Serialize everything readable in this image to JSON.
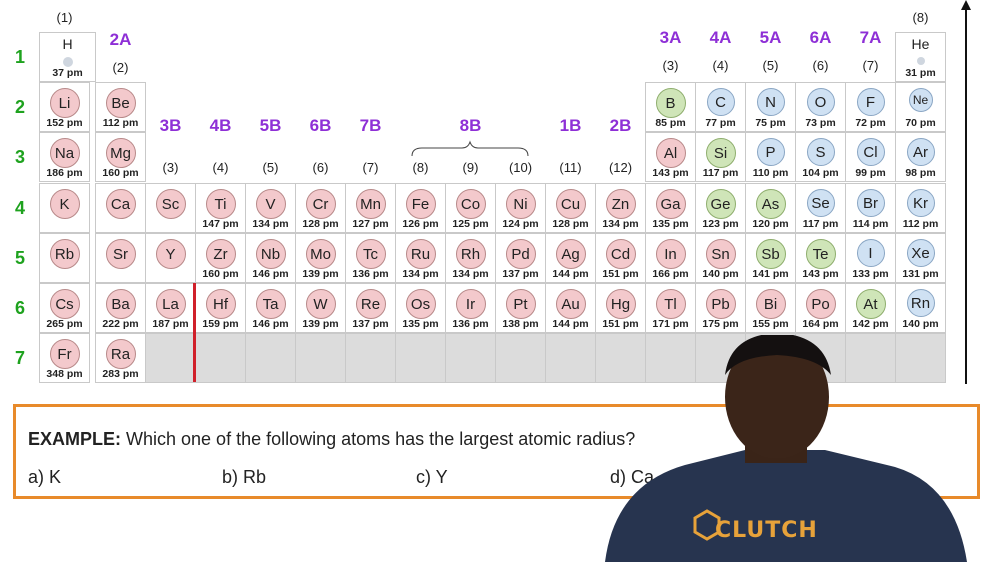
{
  "colors": {
    "metal": "#f3c9cc",
    "metalloid": "#cfe5b8",
    "nonmetal": "#cfe1f3",
    "accent_purple": "#8e2fd6",
    "accent_green": "#1ea21e",
    "box_border": "#e88a2a"
  },
  "rows": [
    "1",
    "2",
    "3",
    "4",
    "5",
    "6",
    "7"
  ],
  "groups_top": [
    {
      "label": "",
      "num": "(1)"
    },
    {
      "label": "2A",
      "num": "(2)"
    },
    {
      "label": "3B",
      "num": "(3)"
    },
    {
      "label": "4B",
      "num": "(4)"
    },
    {
      "label": "5B",
      "num": "(5)"
    },
    {
      "label": "6B",
      "num": "(6)"
    },
    {
      "label": "7B",
      "num": "(7)"
    },
    {
      "label": "",
      "num": "(8)"
    },
    {
      "label": "8B",
      "num": "(9)"
    },
    {
      "label": "",
      "num": "(10)"
    },
    {
      "label": "1B",
      "num": "(11)"
    },
    {
      "label": "2B",
      "num": "(12)"
    },
    {
      "label": "3A",
      "num": "(3)"
    },
    {
      "label": "4A",
      "num": "(4)"
    },
    {
      "label": "5A",
      "num": "(5)"
    },
    {
      "label": "6A",
      "num": "(6)"
    },
    {
      "label": "7A",
      "num": "(7)"
    },
    {
      "label": "",
      "num": "(8)"
    }
  ],
  "hydrogen": {
    "symbol": "H",
    "pm": "37 pm"
  },
  "helium": {
    "symbol": "He",
    "pm": "31 pm"
  },
  "elements": [
    {
      "sym": "Li",
      "pm": "152 pm",
      "row": 2,
      "col": 1,
      "type": "metal"
    },
    {
      "sym": "Be",
      "pm": "112 pm",
      "row": 2,
      "col": 2,
      "type": "metal"
    },
    {
      "sym": "B",
      "pm": "85 pm",
      "row": 2,
      "col": 13,
      "type": "metalloid"
    },
    {
      "sym": "C",
      "pm": "77 pm",
      "row": 2,
      "col": 14,
      "type": "nonmetal"
    },
    {
      "sym": "N",
      "pm": "75 pm",
      "row": 2,
      "col": 15,
      "type": "nonmetal"
    },
    {
      "sym": "O",
      "pm": "73 pm",
      "row": 2,
      "col": 16,
      "type": "nonmetal"
    },
    {
      "sym": "F",
      "pm": "72 pm",
      "row": 2,
      "col": 17,
      "type": "nonmetal"
    },
    {
      "sym": "Ne",
      "pm": "70 pm",
      "row": 2,
      "col": 18,
      "type": "nonmetal"
    },
    {
      "sym": "Na",
      "pm": "186 pm",
      "row": 3,
      "col": 1,
      "type": "metal"
    },
    {
      "sym": "Mg",
      "pm": "160 pm",
      "row": 3,
      "col": 2,
      "type": "metal"
    },
    {
      "sym": "Al",
      "pm": "143 pm",
      "row": 3,
      "col": 13,
      "type": "metal"
    },
    {
      "sym": "Si",
      "pm": "117 pm",
      "row": 3,
      "col": 14,
      "type": "metalloid"
    },
    {
      "sym": "P",
      "pm": "110 pm",
      "row": 3,
      "col": 15,
      "type": "nonmetal"
    },
    {
      "sym": "S",
      "pm": "104 pm",
      "row": 3,
      "col": 16,
      "type": "nonmetal"
    },
    {
      "sym": "Cl",
      "pm": "99 pm",
      "row": 3,
      "col": 17,
      "type": "nonmetal"
    },
    {
      "sym": "Ar",
      "pm": "98 pm",
      "row": 3,
      "col": 18,
      "type": "nonmetal"
    },
    {
      "sym": "K",
      "pm": "",
      "row": 4,
      "col": 1,
      "type": "metal"
    },
    {
      "sym": "Ca",
      "pm": "",
      "row": 4,
      "col": 2,
      "type": "metal"
    },
    {
      "sym": "Sc",
      "pm": "",
      "row": 4,
      "col": 3,
      "type": "metal"
    },
    {
      "sym": "Ti",
      "pm": "147 pm",
      "row": 4,
      "col": 4,
      "type": "metal"
    },
    {
      "sym": "V",
      "pm": "134 pm",
      "row": 4,
      "col": 5,
      "type": "metal"
    },
    {
      "sym": "Cr",
      "pm": "128 pm",
      "row": 4,
      "col": 6,
      "type": "metal"
    },
    {
      "sym": "Mn",
      "pm": "127 pm",
      "row": 4,
      "col": 7,
      "type": "metal"
    },
    {
      "sym": "Fe",
      "pm": "126 pm",
      "row": 4,
      "col": 8,
      "type": "metal"
    },
    {
      "sym": "Co",
      "pm": "125 pm",
      "row": 4,
      "col": 9,
      "type": "metal"
    },
    {
      "sym": "Ni",
      "pm": "124 pm",
      "row": 4,
      "col": 10,
      "type": "metal"
    },
    {
      "sym": "Cu",
      "pm": "128 pm",
      "row": 4,
      "col": 11,
      "type": "metal"
    },
    {
      "sym": "Zn",
      "pm": "134 pm",
      "row": 4,
      "col": 12,
      "type": "metal"
    },
    {
      "sym": "Ga",
      "pm": "135 pm",
      "row": 4,
      "col": 13,
      "type": "metal"
    },
    {
      "sym": "Ge",
      "pm": "123 pm",
      "row": 4,
      "col": 14,
      "type": "metalloid"
    },
    {
      "sym": "As",
      "pm": "120 pm",
      "row": 4,
      "col": 15,
      "type": "metalloid"
    },
    {
      "sym": "Se",
      "pm": "117 pm",
      "row": 4,
      "col": 16,
      "type": "nonmetal"
    },
    {
      "sym": "Br",
      "pm": "114 pm",
      "row": 4,
      "col": 17,
      "type": "nonmetal"
    },
    {
      "sym": "Kr",
      "pm": "112 pm",
      "row": 4,
      "col": 18,
      "type": "nonmetal"
    },
    {
      "sym": "Rb",
      "pm": "",
      "row": 5,
      "col": 1,
      "type": "metal"
    },
    {
      "sym": "Sr",
      "pm": "",
      "row": 5,
      "col": 2,
      "type": "metal"
    },
    {
      "sym": "Y",
      "pm": "",
      "row": 5,
      "col": 3,
      "type": "metal"
    },
    {
      "sym": "Zr",
      "pm": "160 pm",
      "row": 5,
      "col": 4,
      "type": "metal"
    },
    {
      "sym": "Nb",
      "pm": "146 pm",
      "row": 5,
      "col": 5,
      "type": "metal"
    },
    {
      "sym": "Mo",
      "pm": "139 pm",
      "row": 5,
      "col": 6,
      "type": "metal"
    },
    {
      "sym": "Tc",
      "pm": "136 pm",
      "row": 5,
      "col": 7,
      "type": "metal"
    },
    {
      "sym": "Ru",
      "pm": "134 pm",
      "row": 5,
      "col": 8,
      "type": "metal"
    },
    {
      "sym": "Rh",
      "pm": "134 pm",
      "row": 5,
      "col": 9,
      "type": "metal"
    },
    {
      "sym": "Pd",
      "pm": "137 pm",
      "row": 5,
      "col": 10,
      "type": "metal"
    },
    {
      "sym": "Ag",
      "pm": "144 pm",
      "row": 5,
      "col": 11,
      "type": "metal"
    },
    {
      "sym": "Cd",
      "pm": "151 pm",
      "row": 5,
      "col": 12,
      "type": "metal"
    },
    {
      "sym": "In",
      "pm": "166 pm",
      "row": 5,
      "col": 13,
      "type": "metal"
    },
    {
      "sym": "Sn",
      "pm": "140 pm",
      "row": 5,
      "col": 14,
      "type": "metal"
    },
    {
      "sym": "Sb",
      "pm": "141 pm",
      "row": 5,
      "col": 15,
      "type": "metalloid"
    },
    {
      "sym": "Te",
      "pm": "143 pm",
      "row": 5,
      "col": 16,
      "type": "metalloid"
    },
    {
      "sym": "I",
      "pm": "133 pm",
      "row": 5,
      "col": 17,
      "type": "nonmetal"
    },
    {
      "sym": "Xe",
      "pm": "131 pm",
      "row": 5,
      "col": 18,
      "type": "nonmetal"
    },
    {
      "sym": "Cs",
      "pm": "265 pm",
      "row": 6,
      "col": 1,
      "type": "metal"
    },
    {
      "sym": "Ba",
      "pm": "222 pm",
      "row": 6,
      "col": 2,
      "type": "metal"
    },
    {
      "sym": "La",
      "pm": "187 pm",
      "row": 6,
      "col": 3,
      "type": "metal"
    },
    {
      "sym": "Hf",
      "pm": "159 pm",
      "row": 6,
      "col": 4,
      "type": "metal"
    },
    {
      "sym": "Ta",
      "pm": "146 pm",
      "row": 6,
      "col": 5,
      "type": "metal"
    },
    {
      "sym": "W",
      "pm": "139 pm",
      "row": 6,
      "col": 6,
      "type": "metal"
    },
    {
      "sym": "Re",
      "pm": "137 pm",
      "row": 6,
      "col": 7,
      "type": "metal"
    },
    {
      "sym": "Os",
      "pm": "135 pm",
      "row": 6,
      "col": 8,
      "type": "metal"
    },
    {
      "sym": "Ir",
      "pm": "136 pm",
      "row": 6,
      "col": 9,
      "type": "metal"
    },
    {
      "sym": "Pt",
      "pm": "138 pm",
      "row": 6,
      "col": 10,
      "type": "metal"
    },
    {
      "sym": "Au",
      "pm": "144 pm",
      "row": 6,
      "col": 11,
      "type": "metal"
    },
    {
      "sym": "Hg",
      "pm": "151 pm",
      "row": 6,
      "col": 12,
      "type": "metal"
    },
    {
      "sym": "Tl",
      "pm": "171 pm",
      "row": 6,
      "col": 13,
      "type": "metal"
    },
    {
      "sym": "Pb",
      "pm": "175 pm",
      "row": 6,
      "col": 14,
      "type": "metal"
    },
    {
      "sym": "Bi",
      "pm": "155 pm",
      "row": 6,
      "col": 15,
      "type": "metal"
    },
    {
      "sym": "Po",
      "pm": "164 pm",
      "row": 6,
      "col": 16,
      "type": "metal"
    },
    {
      "sym": "At",
      "pm": "142 pm",
      "row": 6,
      "col": 17,
      "type": "metalloid"
    },
    {
      "sym": "Rn",
      "pm": "140 pm",
      "row": 6,
      "col": 18,
      "type": "nonmetal"
    },
    {
      "sym": "Fr",
      "pm": "348 pm",
      "row": 7,
      "col": 1,
      "type": "metal"
    },
    {
      "sym": "Ra",
      "pm": "283 pm",
      "row": 7,
      "col": 2,
      "type": "metal"
    }
  ],
  "example": {
    "label": "EXAMPLE:",
    "question": " Which one of the following atoms has the largest atomic radius?",
    "options": [
      "a) K",
      "b) Rb",
      "c) Y",
      "d) Ca"
    ]
  },
  "presenter": {
    "shirt_text": "CLUTCH"
  }
}
